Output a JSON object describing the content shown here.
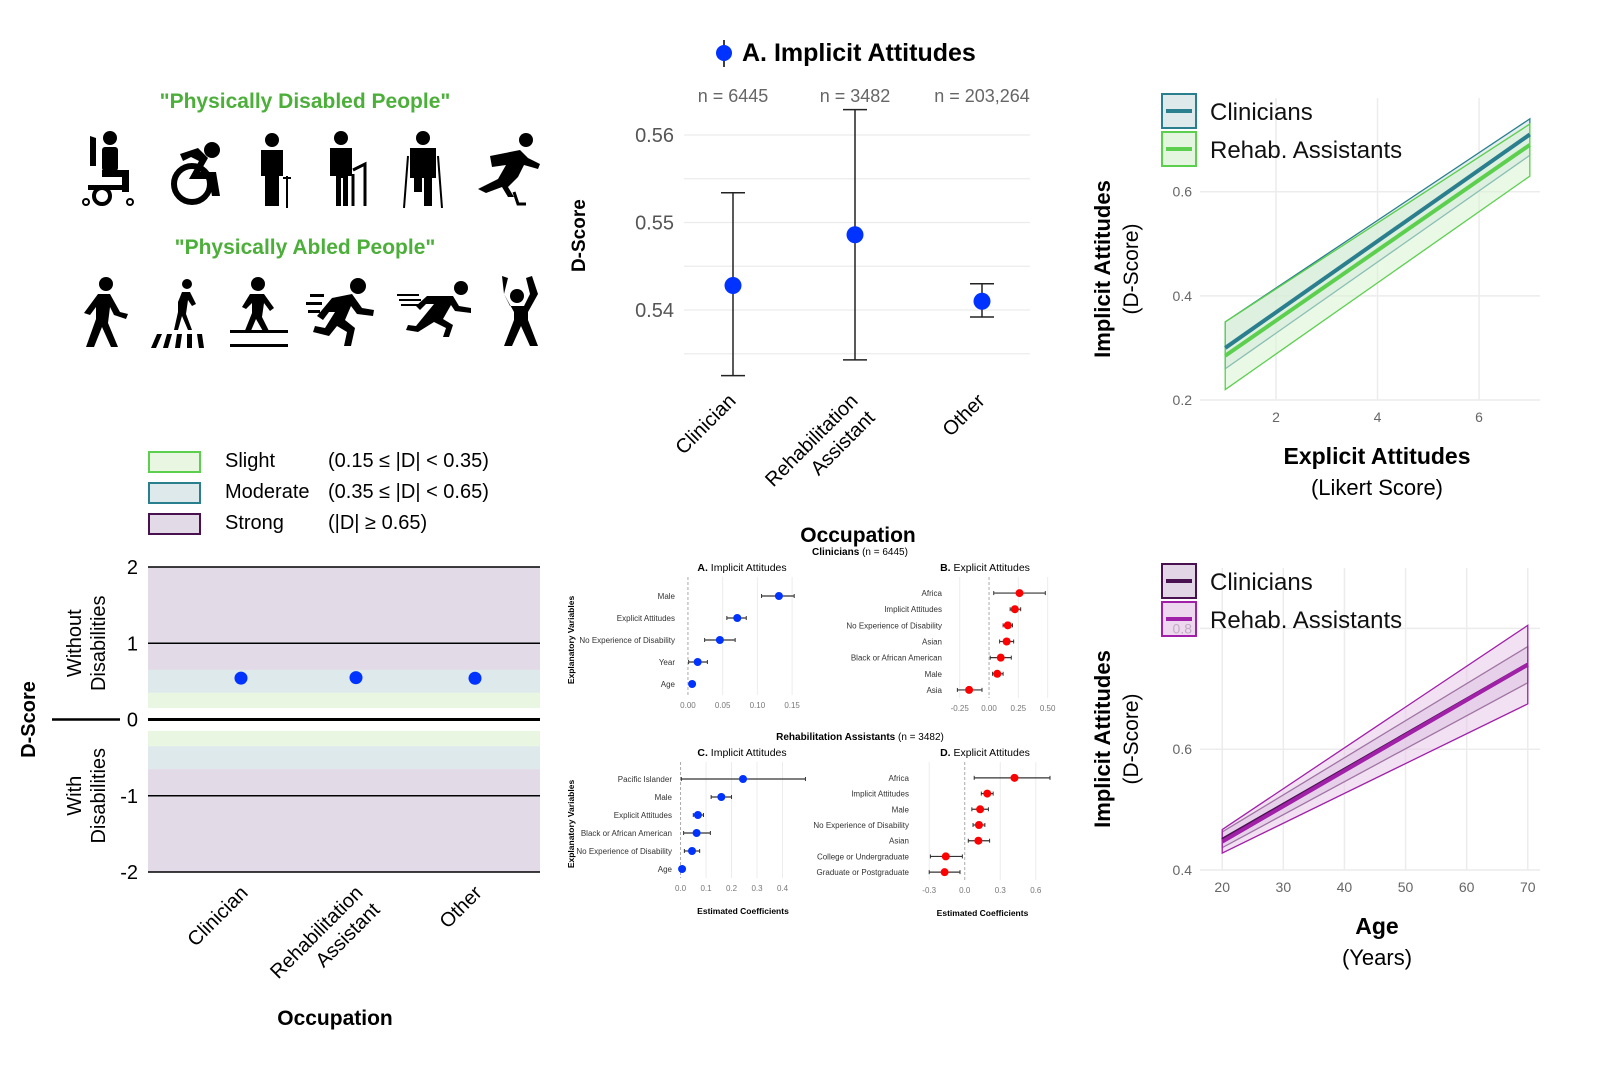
{
  "icons_panel": {
    "disabled_title": "\"Physically Disabled People\"",
    "abled_title": "\"Physically Abled People\"",
    "disabled_icons": [
      "power-wheelchair-user-icon",
      "active-wheelchair-icon",
      "amputee-cane-icon",
      "person-with-walker-icon",
      "amputee-crutches-icon",
      "prosthetic-leg-runner-icon"
    ],
    "abled_icons": [
      "walking-person-icon",
      "crosswalk-pedestrian-icon",
      "person-walking-on-line-icon",
      "running-person-icon",
      "sprinting-person-icon",
      "person-arms-raised-icon"
    ]
  },
  "colors": {
    "blue_point": "#0033ff",
    "red_point": "#ff0000",
    "teal": "#2a7f8e",
    "green": "#5ccf4f",
    "purple_dark": "#4a1150",
    "purple_light": "#a020a8",
    "slight_fill": "#e8f6e2",
    "moderate_fill": "#dde9ea",
    "strong_fill": "#e2dae7",
    "title_green": "#4caf3a"
  },
  "chart_data": [
    {
      "id": "severity-chart",
      "type": "scatter",
      "title": "",
      "xlabel": "Occupation",
      "ylabel": "D-Score",
      "ylabel_top": "Without Disabilities",
      "ylabel_bottom": "With Disabilities",
      "ylim": [
        -2,
        2
      ],
      "yticks": [
        "2",
        "1",
        "0",
        "-1",
        "-2"
      ],
      "categories": [
        "Clinician",
        "Rehabilitation Assistant",
        "Other"
      ],
      "values": [
        0.543,
        0.549,
        0.541
      ],
      "legend": [
        {
          "label": "Slight",
          "range": "(0.15 ≤ |D| < 0.35)"
        },
        {
          "label": "Moderate",
          "range": "(0.35 ≤ |D| < 0.65)"
        },
        {
          "label": "Strong",
          "range": "(|D| ≥ 0.65)"
        }
      ],
      "bands": [
        {
          "name": "Slight",
          "from": 0.15,
          "to": 0.35
        },
        {
          "name": "Moderate",
          "from": 0.35,
          "to": 0.65
        },
        {
          "name": "Strong",
          "from": 0.65,
          "to": 2
        }
      ]
    },
    {
      "id": "implicit-by-occupation",
      "type": "scatter",
      "title": "A. Implicit Attitudes",
      "xlabel": "Occupation",
      "ylabel": "D-Score",
      "ylim": [
        0.532,
        0.564
      ],
      "yticks": [
        "0.56",
        "0.55",
        "0.54"
      ],
      "categories": [
        "Clinician",
        "Rehabilitation Assistant",
        "Other"
      ],
      "n_labels": [
        "n = 6445",
        "n = 3482",
        "n = 203,264"
      ],
      "values": [
        0.5428,
        0.5486,
        0.541
      ],
      "ci_low": [
        0.5325,
        0.5343,
        0.5392
      ],
      "ci_high": [
        0.5534,
        0.5629,
        0.543
      ]
    },
    {
      "id": "coef-clinicians-implicit",
      "type": "scatter",
      "group_title": "Occupation",
      "group_bold": "Clinicians",
      "group_n": "(n = 6445)",
      "title_letter": "A.",
      "title": "Implicit Attitudes",
      "ylabel": "Explanatory Variables",
      "xlabel": "",
      "xlim": [
        -0.01,
        0.17
      ],
      "xticks": [
        0,
        0.05,
        0.1,
        0.15
      ],
      "xtick_labels": [
        "0.00",
        "0.05",
        "0.10",
        "0.15"
      ],
      "variables": [
        "Male",
        "Explicit Attitudes",
        "No Experience of Disability",
        "Year",
        "Age"
      ],
      "values": [
        0.131,
        0.071,
        0.046,
        0.014,
        0.006
      ],
      "ci_low": [
        0.106,
        0.056,
        0.024,
        0.001,
        0.003
      ],
      "ci_high": [
        0.153,
        0.084,
        0.068,
        0.028,
        0.008
      ]
    },
    {
      "id": "coef-clinicians-explicit",
      "type": "scatter",
      "title_letter": "B.",
      "title": "Explicit Attitudes",
      "xlabel": "",
      "xlim": [
        -0.35,
        0.52
      ],
      "xticks": [
        -0.25,
        0,
        0.25,
        0.5
      ],
      "xtick_labels": [
        "-0.25",
        "0.00",
        "0.25",
        "0.50"
      ],
      "variables": [
        "Africa",
        "Implicit Attitudes",
        "No Experience of Disability",
        "Asian",
        "Black or African American",
        "Male",
        "Asia"
      ],
      "values": [
        0.26,
        0.22,
        0.16,
        0.15,
        0.1,
        0.07,
        -0.17
      ],
      "ci_low": [
        0.04,
        0.18,
        0.12,
        0.09,
        0.01,
        0.03,
        -0.27
      ],
      "ci_high": [
        0.48,
        0.27,
        0.2,
        0.21,
        0.19,
        0.12,
        -0.06
      ]
    },
    {
      "id": "coef-rehab-implicit",
      "type": "scatter",
      "group_bold": "Rehabilitation Assistants",
      "group_n": "(n = 3482)",
      "title_letter": "C.",
      "title": "Implicit Attitudes",
      "ylabel": "Explanatory Variables",
      "xlabel": "Estimated Coefficients",
      "xlim": [
        -0.01,
        0.5
      ],
      "xticks": [
        0,
        0.1,
        0.2,
        0.3,
        0.4
      ],
      "xtick_labels": [
        "0.0",
        "0.1",
        "0.2",
        "0.3",
        "0.4"
      ],
      "variables": [
        "Pacific Islander",
        "Male",
        "Explicit Attitudes",
        "Black or African American",
        "No Experience of Disability",
        "Age"
      ],
      "values": [
        0.245,
        0.16,
        0.068,
        0.063,
        0.045,
        0.006
      ],
      "ci_low": [
        0.003,
        0.12,
        0.05,
        0.012,
        0.015,
        0.004
      ],
      "ci_high": [
        0.49,
        0.2,
        0.09,
        0.117,
        0.075,
        0.008
      ]
    },
    {
      "id": "coef-rehab-explicit",
      "type": "scatter",
      "title_letter": "D.",
      "title": "Explicit Attitudes",
      "xlabel": "Estimated Coefficients",
      "xlim": [
        -0.42,
        0.72
      ],
      "xticks": [
        -0.3,
        0,
        0.3,
        0.6
      ],
      "xtick_labels": [
        "-0.3",
        "0.0",
        "0.3",
        "0.6"
      ],
      "variables": [
        "Africa",
        "Implicit Attitudes",
        "Male",
        "No Experience of Disability",
        "Asian",
        "College or Undergraduate",
        "Graduate or Postgraduate"
      ],
      "values": [
        0.42,
        0.19,
        0.13,
        0.12,
        0.115,
        -0.16,
        -0.17
      ],
      "ci_low": [
        0.08,
        0.14,
        0.06,
        0.07,
        0.03,
        -0.29,
        -0.3
      ],
      "ci_high": [
        0.72,
        0.24,
        0.2,
        0.17,
        0.21,
        -0.02,
        -0.04
      ]
    },
    {
      "id": "implicit-vs-explicit",
      "type": "line",
      "xlabel": "Explicit Attitudes",
      "xlabel_sub": "(Likert Score)",
      "ylabel": "Implicit Attitudes",
      "ylabel_sub": "(D-Score)",
      "xlim": [
        0.7,
        7.2
      ],
      "ylim": [
        0.2,
        0.78
      ],
      "xticks": [
        2,
        4,
        6
      ],
      "yticks": [
        0.2,
        0.4,
        0.6
      ],
      "ytick_labels": [
        "0.2",
        "0.4",
        "0.6"
      ],
      "legend_placement": "top-left",
      "series": [
        {
          "name": "Clinicians",
          "x": [
            1,
            7
          ],
          "y": [
            0.3,
            0.71
          ],
          "ci_low": [
            0.26,
            0.67
          ],
          "ci_high": [
            0.35,
            0.74
          ]
        },
        {
          "name": "Rehab. Assistants",
          "x": [
            1,
            7
          ],
          "y": [
            0.285,
            0.69
          ],
          "ci_low": [
            0.22,
            0.63
          ],
          "ci_high": [
            0.35,
            0.73
          ]
        }
      ]
    },
    {
      "id": "implicit-vs-age",
      "type": "line",
      "xlabel": "Age",
      "xlabel_sub": "(Years)",
      "ylabel": "Implicit Attitudes",
      "ylabel_sub": "(D-Score)",
      "xlim": [
        18,
        72
      ],
      "ylim": [
        0.4,
        0.9
      ],
      "xticks": [
        20,
        30,
        40,
        50,
        60,
        70
      ],
      "yticks": [
        0.4,
        0.6,
        0.8
      ],
      "ytick_labels": [
        "0.4",
        "0.6",
        "0.8"
      ],
      "legend_placement": "top-left",
      "series": [
        {
          "name": "Clinicians",
          "x": [
            20,
            70
          ],
          "y": [
            0.45,
            0.74
          ],
          "ci_low": [
            0.437,
            0.71
          ],
          "ci_high": [
            0.463,
            0.77
          ]
        },
        {
          "name": "Rehab. Assistants",
          "x": [
            20,
            70
          ],
          "y": [
            0.447,
            0.74
          ],
          "ci_low": [
            0.428,
            0.675
          ],
          "ci_high": [
            0.467,
            0.805
          ]
        }
      ]
    }
  ]
}
